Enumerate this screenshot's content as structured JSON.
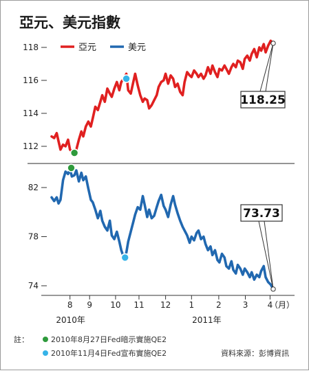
{
  "title": "亞元、美元指數",
  "chart_data": [
    {
      "type": "line",
      "series_name": "亞元",
      "color": "#e02020",
      "x_unit": "trading week",
      "yticks": [
        112,
        114,
        116,
        118
      ],
      "ylim": [
        111,
        119
      ],
      "points": [
        [
          0,
          112.6
        ],
        [
          0.4,
          112.5
        ],
        [
          0.8,
          112.8
        ],
        [
          1.1,
          112.3
        ],
        [
          1.4,
          111.8
        ],
        [
          1.8,
          112.1
        ],
        [
          2.2,
          112.0
        ],
        [
          2.6,
          112.4
        ],
        [
          2.9,
          111.8
        ],
        [
          3.2,
          111.7
        ],
        [
          3.6,
          111.6
        ],
        [
          3.9,
          111.8
        ],
        [
          4.3,
          112.4
        ],
        [
          4.7,
          112.9
        ],
        [
          5.0,
          112.6
        ],
        [
          5.4,
          113.2
        ],
        [
          5.8,
          113.5
        ],
        [
          6.2,
          113.2
        ],
        [
          6.5,
          113.7
        ],
        [
          6.9,
          114.4
        ],
        [
          7.3,
          114.2
        ],
        [
          7.7,
          114.7
        ],
        [
          8.0,
          115.1
        ],
        [
          8.4,
          114.7
        ],
        [
          8.8,
          115.5
        ],
        [
          9.2,
          115.2
        ],
        [
          9.5,
          115.0
        ],
        [
          9.9,
          115.5
        ],
        [
          10.3,
          115.9
        ],
        [
          10.7,
          115.4
        ],
        [
          11.0,
          115.9
        ],
        [
          11.4,
          116.1
        ],
        [
          11.8,
          116.4
        ],
        [
          12.1,
          115.4
        ],
        [
          12.5,
          115.2
        ],
        [
          12.9,
          115.9
        ],
        [
          13.2,
          116.4
        ],
        [
          13.6,
          115.7
        ],
        [
          14.0,
          115.1
        ],
        [
          14.4,
          114.7
        ],
        [
          14.7,
          114.9
        ],
        [
          15.1,
          114.8
        ],
        [
          15.4,
          114.3
        ],
        [
          15.8,
          114.5
        ],
        [
          16.2,
          114.8
        ],
        [
          16.6,
          115.1
        ],
        [
          16.9,
          115.6
        ],
        [
          17.3,
          115.9
        ],
        [
          17.7,
          116.0
        ],
        [
          18.0,
          116.4
        ],
        [
          18.4,
          115.8
        ],
        [
          18.8,
          116.3
        ],
        [
          19.2,
          116.1
        ],
        [
          19.5,
          115.6
        ],
        [
          19.9,
          115.8
        ],
        [
          20.3,
          115.3
        ],
        [
          20.7,
          115.1
        ],
        [
          21.0,
          115.9
        ],
        [
          21.4,
          116.5
        ],
        [
          21.8,
          116.3
        ],
        [
          22.1,
          116.2
        ],
        [
          22.5,
          116.6
        ],
        [
          22.9,
          116.4
        ],
        [
          23.2,
          116.2
        ],
        [
          23.6,
          116.4
        ],
        [
          24.0,
          116.1
        ],
        [
          24.3,
          116.3
        ],
        [
          24.7,
          116.8
        ],
        [
          25.1,
          116.4
        ],
        [
          25.4,
          116.9
        ],
        [
          25.8,
          116.5
        ],
        [
          26.2,
          116.2
        ],
        [
          26.5,
          116.7
        ],
        [
          26.9,
          116.6
        ],
        [
          27.3,
          116.9
        ],
        [
          27.6,
          116.7
        ],
        [
          28.0,
          116.4
        ],
        [
          28.4,
          116.8
        ],
        [
          28.7,
          117.0
        ],
        [
          29.1,
          116.8
        ],
        [
          29.4,
          117.2
        ],
        [
          29.8,
          117.1
        ],
        [
          30.2,
          116.7
        ],
        [
          30.5,
          117.3
        ],
        [
          30.9,
          117.5
        ],
        [
          31.3,
          117.2
        ],
        [
          31.6,
          117.6
        ],
        [
          32.0,
          117.9
        ],
        [
          32.4,
          117.4
        ],
        [
          32.8,
          118.0
        ],
        [
          33.1,
          117.8
        ],
        [
          33.5,
          118.2
        ],
        [
          33.8,
          117.7
        ],
        [
          34.2,
          118.1
        ],
        [
          34.6,
          118.4
        ],
        [
          35.0,
          118.25
        ]
      ],
      "markers": [
        {
          "x": 3.6,
          "y": 111.6,
          "color": "#2e9a3c",
          "note": "green"
        },
        {
          "x": 11.8,
          "y": 116.1,
          "color": "#36b3e8",
          "note": "cyan"
        }
      ],
      "callout": "118.25"
    },
    {
      "type": "line",
      "series_name": "美元",
      "color": "#2168b0",
      "x_unit": "trading week",
      "yticks": [
        74,
        78,
        82
      ],
      "ylim": [
        73,
        84
      ],
      "points": [
        [
          0,
          81.2
        ],
        [
          0.4,
          80.9
        ],
        [
          0.8,
          81.2
        ],
        [
          1.1,
          80.7
        ],
        [
          1.4,
          81.0
        ],
        [
          1.8,
          82.6
        ],
        [
          2.2,
          83.3
        ],
        [
          2.6,
          83.1
        ],
        [
          2.9,
          83.5
        ],
        [
          3.2,
          82.9
        ],
        [
          3.6,
          83.0
        ],
        [
          3.9,
          83.4
        ],
        [
          4.3,
          82.5
        ],
        [
          4.7,
          83.2
        ],
        [
          5.0,
          82.6
        ],
        [
          5.4,
          82.9
        ],
        [
          5.8,
          81.9
        ],
        [
          6.2,
          81.0
        ],
        [
          6.5,
          80.8
        ],
        [
          6.9,
          80.2
        ],
        [
          7.3,
          79.5
        ],
        [
          7.7,
          80.1
        ],
        [
          8.0,
          79.3
        ],
        [
          8.4,
          78.8
        ],
        [
          8.8,
          78.5
        ],
        [
          9.2,
          79.3
        ],
        [
          9.5,
          78.1
        ],
        [
          9.9,
          77.8
        ],
        [
          10.3,
          78.4
        ],
        [
          10.7,
          77.6
        ],
        [
          11.0,
          76.9
        ],
        [
          11.4,
          76.3
        ],
        [
          11.8,
          76.7
        ],
        [
          12.1,
          77.6
        ],
        [
          12.5,
          78.4
        ],
        [
          12.9,
          79.2
        ],
        [
          13.2,
          79.8
        ],
        [
          13.6,
          80.4
        ],
        [
          14.0,
          80.2
        ],
        [
          14.4,
          81.3
        ],
        [
          14.7,
          80.6
        ],
        [
          15.1,
          79.6
        ],
        [
          15.4,
          80.2
        ],
        [
          15.8,
          79.5
        ],
        [
          16.2,
          79.7
        ],
        [
          16.6,
          80.4
        ],
        [
          16.9,
          80.9
        ],
        [
          17.3,
          81.4
        ],
        [
          17.7,
          80.5
        ],
        [
          18.0,
          80.2
        ],
        [
          18.4,
          79.6
        ],
        [
          18.8,
          80.6
        ],
        [
          19.2,
          81.3
        ],
        [
          19.5,
          80.6
        ],
        [
          19.9,
          79.9
        ],
        [
          20.3,
          79.3
        ],
        [
          20.7,
          78.8
        ],
        [
          21.0,
          78.5
        ],
        [
          21.4,
          78.1
        ],
        [
          21.8,
          77.5
        ],
        [
          22.1,
          78.0
        ],
        [
          22.5,
          77.7
        ],
        [
          22.9,
          78.3
        ],
        [
          23.2,
          78.5
        ],
        [
          23.6,
          77.8
        ],
        [
          24.0,
          78.0
        ],
        [
          24.3,
          77.4
        ],
        [
          24.7,
          76.9
        ],
        [
          25.1,
          77.2
        ],
        [
          25.4,
          76.5
        ],
        [
          25.8,
          76.9
        ],
        [
          26.2,
          76.1
        ],
        [
          26.5,
          75.9
        ],
        [
          26.9,
          76.6
        ],
        [
          27.3,
          76.3
        ],
        [
          27.6,
          75.6
        ],
        [
          28.0,
          75.4
        ],
        [
          28.4,
          76.0
        ],
        [
          28.7,
          75.3
        ],
        [
          29.1,
          75.0
        ],
        [
          29.4,
          75.7
        ],
        [
          29.8,
          75.4
        ],
        [
          30.2,
          74.9
        ],
        [
          30.5,
          75.4
        ],
        [
          30.9,
          75.1
        ],
        [
          31.3,
          74.7
        ],
        [
          31.6,
          75.1
        ],
        [
          32.0,
          74.5
        ],
        [
          32.4,
          74.9
        ],
        [
          32.8,
          74.7
        ],
        [
          33.1,
          75.2
        ],
        [
          33.5,
          75.6
        ],
        [
          33.8,
          74.7
        ],
        [
          34.2,
          74.3
        ],
        [
          34.6,
          74.1
        ],
        [
          35.0,
          73.73
        ]
      ],
      "markers": [
        {
          "x": 3.1,
          "y": 83.6,
          "color": "#2e9a3c",
          "note": "green"
        },
        {
          "x": 11.6,
          "y": 76.3,
          "color": "#36b3e8",
          "note": "cyan"
        }
      ],
      "callout": "73.73"
    }
  ],
  "x_axis": {
    "month_ticks": [
      {
        "label": "8",
        "x": 2.9
      },
      {
        "label": "9",
        "x": 6.0
      },
      {
        "label": "10",
        "x": 10.1
      },
      {
        "label": "11",
        "x": 13.8
      },
      {
        "label": "12",
        "x": 18.0
      },
      {
        "label": "1",
        "x": 22.1
      },
      {
        "label": "2",
        "x": 26.4
      },
      {
        "label": "3",
        "x": 30.6
      },
      {
        "label": "4",
        "x": 34.5
      }
    ],
    "unit_label": "（月）",
    "year_labels": [
      {
        "label": "2010年",
        "x": 3.0
      },
      {
        "label": "2011年",
        "x": 24.5
      }
    ]
  },
  "notes": {
    "prefix": "註：",
    "green_marker_label": "2010年8月27日Fed暗示實施QE2",
    "cyan_marker_label": "2010年11月4日Fed宣布實施QE2",
    "source": "資料來源：彭博資訊"
  }
}
